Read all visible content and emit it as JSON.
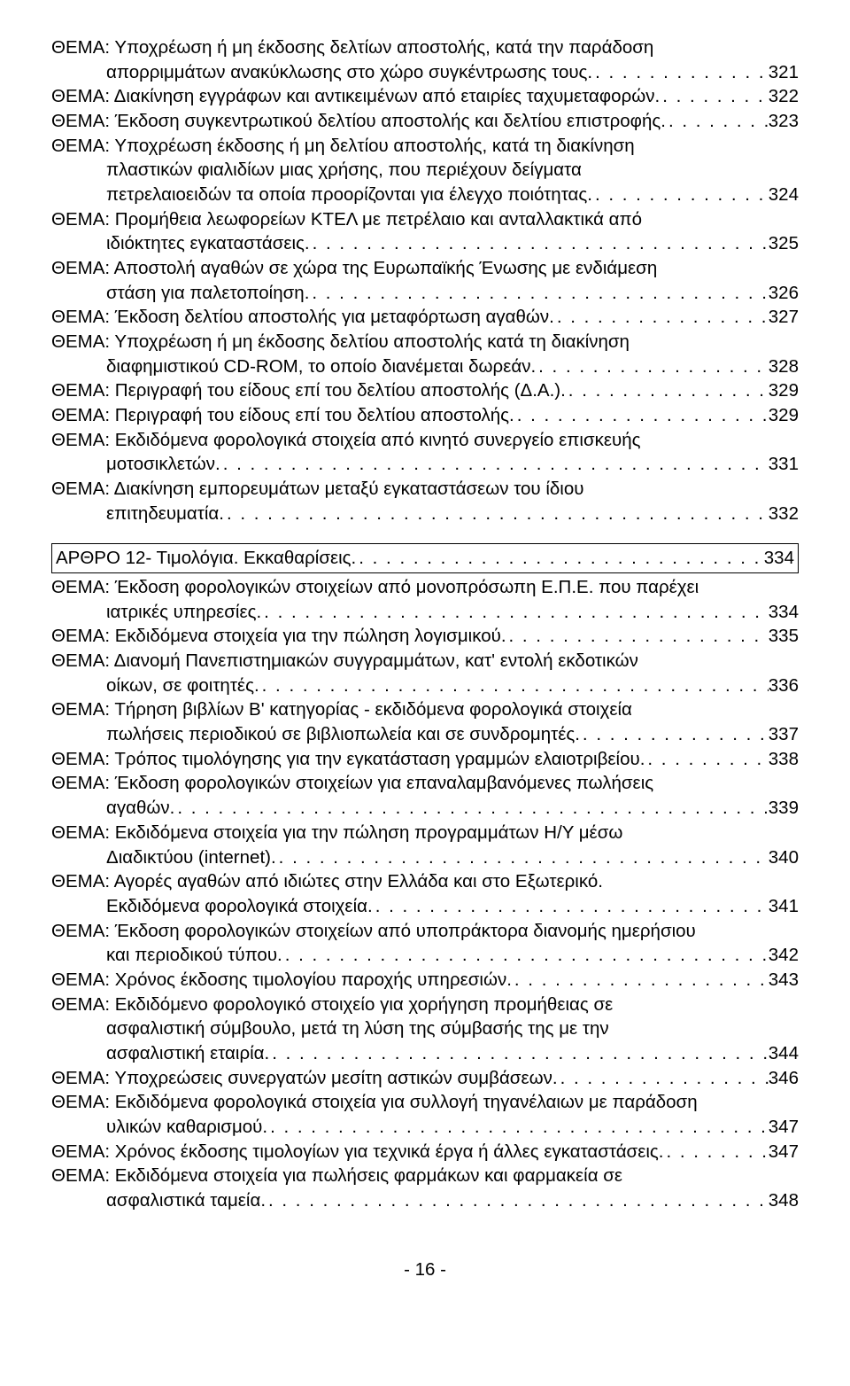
{
  "entries": [
    {
      "prefix": "ΘΕΜΑ: ",
      "text1": "Υποχρέωση ή μη έκδοσης δελτίων αποστολής, κατά την παράδοση",
      "text2": "απορριμμάτων ανακύκλωσης στο χώρο συγκέντρωσης τους.",
      "page": "321"
    },
    {
      "prefix": "ΘΕΜΑ: ",
      "text1": "Διακίνηση εγγράφων και αντικειμένων από εταιρίες ταχυμεταφορών.",
      "page": "322",
      "single": true
    },
    {
      "prefix": "ΘΕΜΑ: ",
      "text1": "Έκδοση συγκεντρωτικού δελτίου αποστολής και δελτίου επιστροφής.",
      "page": "323",
      "single": true
    },
    {
      "prefix": "ΘΕΜΑ: ",
      "text1": "Υποχρέωση έκδοσης ή μη δελτίου αποστολής, κατά τη διακίνηση",
      "text2": "πλαστικών φιαλιδίων μιας χρήσης, που περιέχουν δείγματα",
      "text3": "πετρελαιοειδών τα οποία προορίζονται για έλεγχο ποιότητας.",
      "page": "324"
    },
    {
      "prefix": "ΘΕΜΑ: ",
      "text1": "Προμήθεια λεωφορείων ΚΤΕΛ με πετρέλαιο και ανταλλακτικά από",
      "text2": "ιδιόκτητες εγκαταστάσεις.",
      "page": "325"
    },
    {
      "prefix": "ΘΕΜΑ: ",
      "text1": "Αποστολή αγαθών σε χώρα της Ευρωπαϊκής Ένωσης με ενδιάμεση",
      "text2": "στάση για παλετοποίηση.",
      "page": "326"
    },
    {
      "prefix": "ΘΕΜΑ: ",
      "text1": "Έκδοση δελτίου αποστολής για μεταφόρτωση αγαθών.",
      "page": "327",
      "single": true
    },
    {
      "prefix": "ΘΕΜΑ: ",
      "text1": "Υποχρέωση ή μη έκδοσης δελτίου αποστολής κατά τη διακίνηση",
      "text2": "διαφημιστικού CD-ROM, το οποίο διανέμεται δωρεάν.",
      "page": "328"
    },
    {
      "prefix": "ΘΕΜΑ: ",
      "text1": "Περιγραφή του είδους επί του δελτίου αποστολής (Δ.Α.).",
      "page": "329",
      "single": true
    },
    {
      "prefix": "ΘΕΜΑ: ",
      "text1": "Περιγραφή του είδους επί του δελτίου αποστολής.",
      "page": "329",
      "single": true
    },
    {
      "prefix": "ΘΕΜΑ: ",
      "text1": "Εκδιδόμενα φορολογικά στοιχεία από κινητό συνεργείο επισκευής",
      "text2": "μοτοσικλετών.",
      "page": "331"
    },
    {
      "prefix": "ΘΕΜΑ: ",
      "text1": "Διακίνηση εμπορευμάτων μεταξύ εγκαταστάσεων του ίδιου",
      "text2": "επιτηδευματία.",
      "page": "332"
    }
  ],
  "section": {
    "text": "ΑΡΘΡΟ 12- Τιμολόγια. Εκκαθαρίσεις.",
    "page": "334"
  },
  "entries2": [
    {
      "prefix": "ΘΕΜΑ: ",
      "text1": "Έκδοση φορολογικών στοιχείων από μονοπρόσωπη Ε.Π.Ε. που παρέχει",
      "text2": "ιατρικές υπηρεσίες.",
      "page": "334"
    },
    {
      "prefix": "ΘΕΜΑ: ",
      "text1": "Εκδιδόμενα στοιχεία για την πώληση λογισμικού.",
      "page": "335",
      "single": true
    },
    {
      "prefix": "ΘΕΜΑ: ",
      "text1": "Διανομή  Πανεπιστημιακών συγγραμμάτων, κατ' εντολή εκδοτικών",
      "text2": "οίκων,  σε φοιτητές.",
      "page": "336"
    },
    {
      "prefix": "ΘΕΜΑ: ",
      "text1": "Τήρηση βιβλίων Β' κατηγορίας - εκδιδόμενα φορολογικά στοιχεία",
      "text2": "πωλήσεις περιοδικού σε βιβλιοπωλεία και σε συνδρομητές.",
      "page": "337"
    },
    {
      "prefix": "ΘΕΜΑ: ",
      "text1": "Τρόπος τιμολόγησης για την εγκατάσταση γραμμών ελαιοτριβείου.",
      "page": "338",
      "single": true
    },
    {
      "prefix": "ΘΕΜΑ: ",
      "text1": "Έκδοση φορολογικών στοιχείων για επαναλαμβανόμενες πωλήσεις",
      "text2": "αγαθών.",
      "page": "339"
    },
    {
      "prefix": "ΘΕΜΑ: ",
      "text1": "Εκδιδόμενα στοιχεία για την πώληση προγραμμάτων Η/Υ μέσω",
      "text2": "Διαδικτύου (internet).",
      "page": "340"
    },
    {
      "prefix": "ΘΕΜΑ: ",
      "text1": "Αγορές αγαθών από ιδιώτες στην Ελλάδα και στο Εξωτερικό.",
      "text2": "Εκδιδόμενα φορολογικά στοιχεία.",
      "page": "341"
    },
    {
      "prefix": "ΘΕΜΑ: ",
      "text1": "Έκδοση φορολογικών στοιχείων από υποπράκτορα διανομής ημερήσιου",
      "text2": "και περιοδικού τύπου.",
      "page": "342"
    },
    {
      "prefix": "ΘΕΜΑ: ",
      "text1": "Χρόνος έκδοσης τιμολογίου παροχής υπηρεσιών.",
      "page": "343",
      "single": true
    },
    {
      "prefix": "ΘΕΜΑ: ",
      "text1": "Εκδιδόμενο φορολογικό στοιχείο για χορήγηση προμήθειας σε",
      "text2": "ασφαλιστική σύμβουλο, μετά τη λύση της σύμβασής της με την",
      "text3": "ασφαλιστική εταιρία.",
      "page": "344"
    },
    {
      "prefix": "ΘΕΜΑ: ",
      "text1": "Υποχρεώσεις συνεργατών μεσίτη αστικών συμβάσεων.",
      "page": "346",
      "single": true
    },
    {
      "prefix": "ΘΕΜΑ: ",
      "text1": "Εκδιδόμενα φορολογικά στοιχεία για συλλογή τηγανέλαιων με παράδοση",
      "text2": "υλικών καθαρισμού.",
      "page": "347"
    },
    {
      "prefix": "ΘΕΜΑ: ",
      "text1": "Χρόνος έκδοσης τιμολογίων για τεχνικά έργα ή άλλες εγκαταστάσεις.",
      "page": "347",
      "single": true
    },
    {
      "prefix": "ΘΕΜΑ: ",
      "text1": "Εκδιδόμενα στοιχεία για πωλήσεις φαρμάκων και φαρμακεία σε",
      "text2": "ασφαλιστικά ταμεία.",
      "page": "348"
    }
  ],
  "footer": "- 16 -",
  "dots": ". . . . . . . . . . . . . . . . . . . . . . . . . . . . . . . . . . . . . . . . . . . . . . . . . . . . . . . . . . . . . . . . . . . . . . . . . . . . . . . . . . . . . . . . ."
}
